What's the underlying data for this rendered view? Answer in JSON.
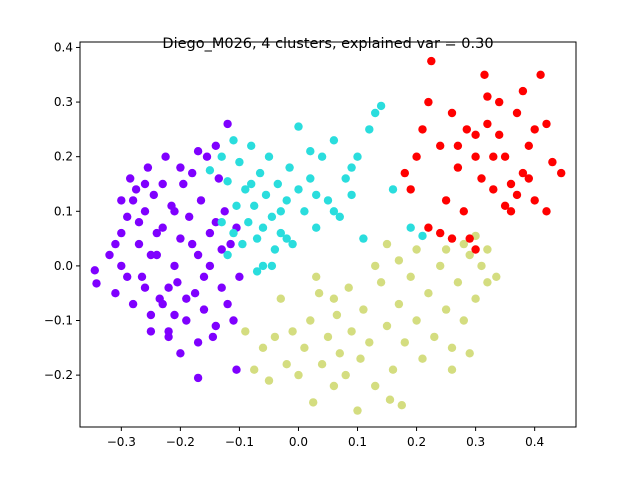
{
  "chart_data": {
    "type": "scatter",
    "title": "Diego_M026, 4 clusters, explained var = 0.30",
    "xlabel": "",
    "ylabel": "",
    "xlim": [
      -0.37,
      0.47
    ],
    "ylim": [
      -0.295,
      0.41
    ],
    "xticks": [
      -0.3,
      -0.2,
      -0.1,
      0.0,
      0.1,
      0.2,
      0.3,
      0.4
    ],
    "xtick_labels": [
      "−0.3",
      "−0.2",
      "−0.1",
      "0.0",
      "0.1",
      "0.2",
      "0.3",
      "0.4"
    ],
    "yticks": [
      -0.2,
      -0.1,
      0.0,
      0.1,
      0.2,
      0.3,
      0.4
    ],
    "ytick_labels": [
      "−0.2",
      "−0.1",
      "0.0",
      "0.1",
      "0.2",
      "0.3",
      "0.4"
    ],
    "grid": false,
    "legend": "none",
    "series": [
      {
        "color": "#7f00ff",
        "points": [
          [
            -0.345,
            -0.008
          ],
          [
            -0.342,
            -0.032
          ],
          [
            -0.32,
            0.02
          ],
          [
            -0.31,
            -0.05
          ],
          [
            -0.3,
            0.06
          ],
          [
            -0.29,
            0.09
          ],
          [
            -0.3,
            0.12
          ],
          [
            -0.285,
            0.16
          ],
          [
            -0.275,
            0.14
          ],
          [
            -0.27,
            0.04
          ],
          [
            -0.265,
            -0.02
          ],
          [
            -0.26,
            0.1
          ],
          [
            -0.255,
            0.18
          ],
          [
            -0.25,
            -0.09
          ],
          [
            -0.245,
            0.13
          ],
          [
            -0.24,
            0.02
          ],
          [
            -0.235,
            -0.06
          ],
          [
            -0.23,
            0.07
          ],
          [
            -0.225,
            0.2
          ],
          [
            -0.22,
            -0.12
          ],
          [
            -0.215,
            0.11
          ],
          [
            -0.21,
            0.0
          ],
          [
            -0.205,
            -0.03
          ],
          [
            -0.2,
            0.05
          ],
          [
            -0.195,
            0.15
          ],
          [
            -0.19,
            -0.1
          ],
          [
            -0.185,
            0.09
          ],
          [
            -0.18,
            0.17
          ],
          [
            -0.175,
            -0.05
          ],
          [
            -0.17,
            0.02
          ],
          [
            -0.165,
            0.12
          ],
          [
            -0.16,
            -0.08
          ],
          [
            -0.155,
            0.2
          ],
          [
            -0.15,
            0.0
          ],
          [
            -0.145,
            -0.13
          ],
          [
            -0.14,
            0.08
          ],
          [
            -0.135,
            0.16
          ],
          [
            -0.13,
            -0.04
          ],
          [
            -0.125,
            0.1
          ],
          [
            -0.12,
            0.26
          ],
          [
            -0.115,
            0.04
          ],
          [
            -0.11,
            -0.1
          ],
          [
            -0.105,
            0.07
          ],
          [
            -0.1,
            -0.02
          ],
          [
            -0.105,
            -0.19
          ],
          [
            -0.17,
            -0.205
          ],
          [
            -0.2,
            -0.16
          ],
          [
            -0.22,
            -0.13
          ],
          [
            -0.25,
            -0.12
          ],
          [
            -0.28,
            -0.07
          ],
          [
            -0.3,
            0.0
          ],
          [
            -0.31,
            0.04
          ],
          [
            -0.27,
            0.08
          ],
          [
            -0.24,
            0.06
          ],
          [
            -0.21,
            0.1
          ],
          [
            -0.18,
            0.04
          ],
          [
            -0.15,
            0.06
          ],
          [
            -0.13,
            0.03
          ],
          [
            -0.16,
            -0.02
          ],
          [
            -0.19,
            -0.06
          ],
          [
            -0.22,
            -0.04
          ],
          [
            -0.25,
            0.02
          ],
          [
            -0.28,
            0.12
          ],
          [
            -0.26,
            0.15
          ],
          [
            -0.23,
            0.15
          ],
          [
            -0.2,
            0.18
          ],
          [
            -0.17,
            0.21
          ],
          [
            -0.14,
            0.22
          ],
          [
            -0.12,
            -0.07
          ],
          [
            -0.14,
            -0.11
          ],
          [
            -0.17,
            -0.14
          ],
          [
            -0.21,
            -0.09
          ],
          [
            -0.23,
            -0.07
          ],
          [
            -0.26,
            -0.04
          ],
          [
            -0.29,
            -0.02
          ]
        ]
      },
      {
        "color": "#2adddd",
        "points": [
          [
            -0.15,
            0.175
          ],
          [
            -0.13,
            0.2
          ],
          [
            -0.12,
            0.155
          ],
          [
            -0.11,
            0.23
          ],
          [
            -0.1,
            0.19
          ],
          [
            -0.09,
            0.14
          ],
          [
            -0.085,
            0.08
          ],
          [
            -0.08,
            0.22
          ],
          [
            -0.075,
            0.11
          ],
          [
            -0.07,
            0.05
          ],
          [
            -0.065,
            0.17
          ],
          [
            -0.06,
            0.0
          ],
          [
            -0.055,
            0.13
          ],
          [
            -0.05,
            0.2
          ],
          [
            -0.045,
            0.09
          ],
          [
            -0.04,
            0.03
          ],
          [
            -0.035,
            0.15
          ],
          [
            -0.03,
            0.06
          ],
          [
            -0.02,
            0.12
          ],
          [
            -0.015,
            0.18
          ],
          [
            -0.01,
            0.04
          ],
          [
            0.0,
            0.255
          ],
          [
            0.01,
            0.1
          ],
          [
            0.02,
            0.16
          ],
          [
            0.03,
            0.07
          ],
          [
            0.04,
            0.2
          ],
          [
            0.05,
            0.12
          ],
          [
            0.06,
            0.23
          ],
          [
            0.07,
            0.09
          ],
          [
            0.08,
            0.16
          ],
          [
            0.09,
            0.13
          ],
          [
            0.1,
            0.2
          ],
          [
            0.11,
            0.05
          ],
          [
            0.12,
            0.25
          ],
          [
            0.13,
            0.28
          ],
          [
            0.14,
            0.293
          ],
          [
            0.16,
            0.14
          ],
          [
            0.19,
            0.07
          ],
          [
            0.21,
            0.055
          ],
          [
            -0.13,
            0.08
          ],
          [
            -0.12,
            0.02
          ],
          [
            -0.095,
            0.04
          ],
          [
            -0.07,
            -0.01
          ],
          [
            -0.045,
            0.0
          ],
          [
            -0.06,
            0.07
          ],
          [
            -0.03,
            0.1
          ],
          [
            0.0,
            0.14
          ],
          [
            0.03,
            0.13
          ],
          [
            0.06,
            0.1
          ],
          [
            0.09,
            0.18
          ],
          [
            -0.105,
            0.11
          ],
          [
            -0.08,
            0.15
          ],
          [
            -0.02,
            0.05
          ],
          [
            0.02,
            0.21
          ],
          [
            -0.11,
            0.06
          ]
        ]
      },
      {
        "color": "#d4dd80",
        "points": [
          [
            -0.09,
            -0.12
          ],
          [
            -0.075,
            -0.19
          ],
          [
            -0.06,
            -0.15
          ],
          [
            -0.05,
            -0.21
          ],
          [
            -0.04,
            -0.13
          ],
          [
            -0.03,
            -0.06
          ],
          [
            -0.02,
            -0.18
          ],
          [
            -0.01,
            -0.12
          ],
          [
            0.0,
            -0.2
          ],
          [
            0.01,
            -0.15
          ],
          [
            0.02,
            -0.1
          ],
          [
            0.025,
            -0.25
          ],
          [
            0.035,
            -0.05
          ],
          [
            0.04,
            -0.18
          ],
          [
            0.05,
            -0.13
          ],
          [
            0.06,
            -0.22
          ],
          [
            0.065,
            -0.09
          ],
          [
            0.07,
            -0.16
          ],
          [
            0.08,
            -0.2
          ],
          [
            0.085,
            -0.04
          ],
          [
            0.09,
            -0.12
          ],
          [
            0.1,
            -0.265
          ],
          [
            0.105,
            -0.17
          ],
          [
            0.11,
            -0.08
          ],
          [
            0.12,
            -0.14
          ],
          [
            0.13,
            -0.22
          ],
          [
            0.14,
            -0.03
          ],
          [
            0.15,
            -0.11
          ],
          [
            0.16,
            -0.19
          ],
          [
            0.17,
            -0.07
          ],
          [
            0.18,
            -0.14
          ],
          [
            0.19,
            -0.02
          ],
          [
            0.2,
            -0.1
          ],
          [
            0.21,
            -0.17
          ],
          [
            0.22,
            -0.05
          ],
          [
            0.23,
            -0.13
          ],
          [
            0.24,
            0.0
          ],
          [
            0.25,
            -0.08
          ],
          [
            0.26,
            -0.15
          ],
          [
            0.27,
            -0.03
          ],
          [
            0.28,
            -0.1
          ],
          [
            0.29,
            0.02
          ],
          [
            0.3,
            -0.06
          ],
          [
            0.31,
            0.0
          ],
          [
            0.32,
            -0.03
          ],
          [
            0.335,
            -0.02
          ],
          [
            0.155,
            -0.245
          ],
          [
            0.175,
            -0.255
          ],
          [
            0.13,
            0.0
          ],
          [
            0.15,
            0.04
          ],
          [
            0.17,
            0.01
          ],
          [
            0.2,
            0.03
          ],
          [
            0.25,
            0.03
          ],
          [
            0.28,
            0.04
          ],
          [
            0.3,
            0.055
          ],
          [
            0.32,
            0.03
          ],
          [
            0.26,
            -0.19
          ],
          [
            0.29,
            -0.16
          ],
          [
            0.06,
            -0.06
          ],
          [
            0.03,
            -0.02
          ]
        ]
      },
      {
        "color": "#ff0000",
        "points": [
          [
            0.18,
            0.17
          ],
          [
            0.19,
            0.14
          ],
          [
            0.2,
            0.2
          ],
          [
            0.21,
            0.25
          ],
          [
            0.22,
            0.3
          ],
          [
            0.225,
            0.375
          ],
          [
            0.24,
            0.22
          ],
          [
            0.25,
            0.12
          ],
          [
            0.26,
            0.28
          ],
          [
            0.27,
            0.18
          ],
          [
            0.28,
            0.1
          ],
          [
            0.285,
            0.25
          ],
          [
            0.29,
            0.05
          ],
          [
            0.3,
            0.2
          ],
          [
            0.31,
            0.16
          ],
          [
            0.315,
            0.35
          ],
          [
            0.32,
            0.26
          ],
          [
            0.33,
            0.14
          ],
          [
            0.34,
            0.3
          ],
          [
            0.35,
            0.2
          ],
          [
            0.36,
            0.1
          ],
          [
            0.37,
            0.28
          ],
          [
            0.38,
            0.17
          ],
          [
            0.39,
            0.22
          ],
          [
            0.4,
            0.12
          ],
          [
            0.41,
            0.35
          ],
          [
            0.42,
            0.26
          ],
          [
            0.43,
            0.19
          ],
          [
            0.445,
            0.17
          ],
          [
            0.42,
            0.1
          ],
          [
            0.22,
            0.07
          ],
          [
            0.24,
            0.06
          ],
          [
            0.26,
            0.05
          ],
          [
            0.3,
            0.03
          ],
          [
            0.32,
            0.31
          ],
          [
            0.34,
            0.24
          ],
          [
            0.36,
            0.15
          ],
          [
            0.38,
            0.32
          ],
          [
            0.4,
            0.25
          ],
          [
            0.3,
            0.24
          ],
          [
            0.27,
            0.22
          ],
          [
            0.33,
            0.2
          ],
          [
            0.37,
            0.13
          ],
          [
            0.39,
            0.16
          ],
          [
            0.35,
            0.11
          ]
        ]
      }
    ]
  }
}
